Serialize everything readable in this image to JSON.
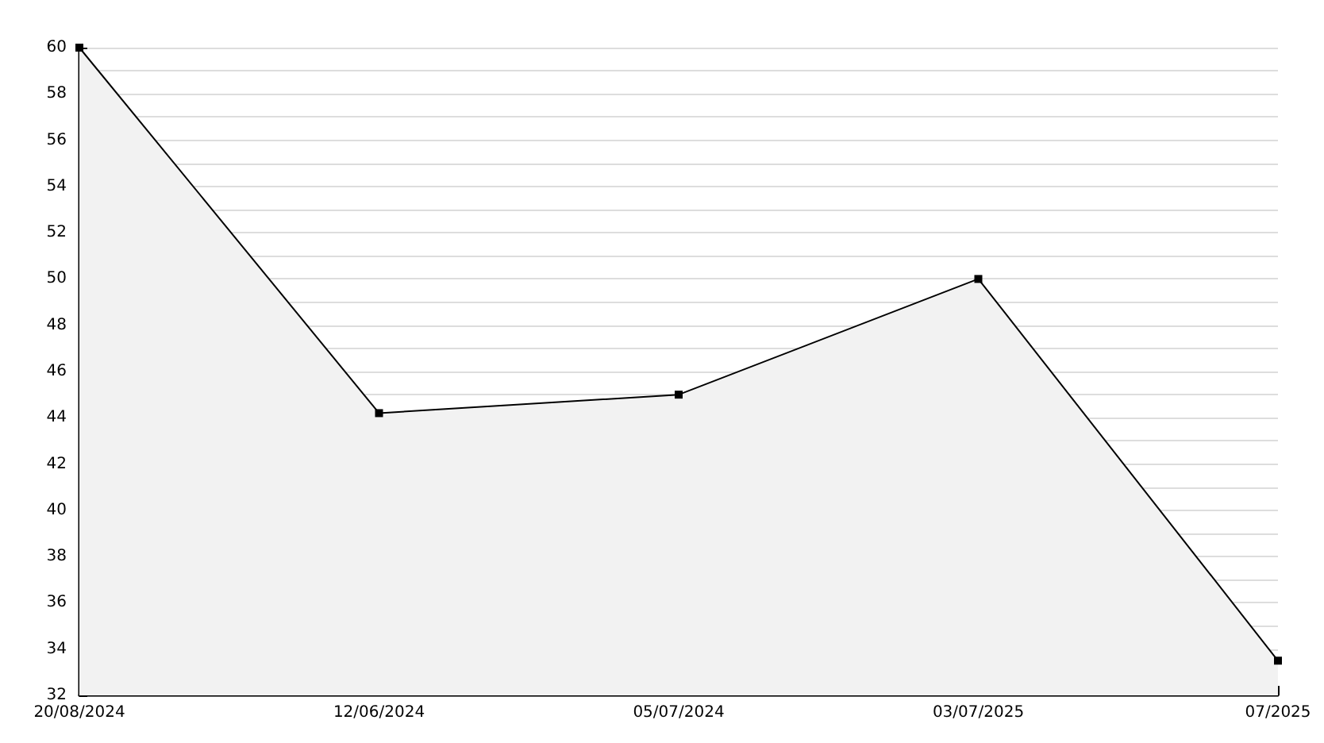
{
  "chart_data": {
    "type": "area",
    "categories": [
      "20/08/2024",
      "12/06/2024",
      "05/07/2024",
      "03/07/2025",
      "07/2025"
    ],
    "values": [
      60,
      44.2,
      45,
      50,
      33.5
    ],
    "color": "#000000",
    "ylim": [
      32,
      60
    ],
    "yticks": [
      32,
      34,
      36,
      38,
      40,
      42,
      44,
      46,
      48,
      50,
      52,
      54,
      56,
      58,
      60
    ],
    "grid": "y",
    "marker": "square",
    "line_style": "solid"
  }
}
